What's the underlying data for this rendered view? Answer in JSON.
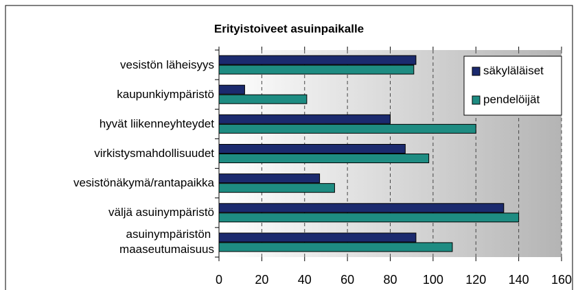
{
  "chart_data": {
    "type": "hbar",
    "title": "Erityistoiveet asuinpaikalle",
    "categories": [
      "vesistön läheisyys",
      "kaupunkiympäristö",
      "hyvät liikenneyhteydet",
      "virkistysmahdollisuudet",
      "vesistönäkymä/rantapaikka",
      "väljä asuinympäristö",
      "asuinympäristön \nmaaseutumaisuus"
    ],
    "series": [
      {
        "name": "säkyläläiset",
        "color": "#1b2a6e",
        "values": [
          92,
          12,
          80,
          87,
          47,
          133,
          92
        ]
      },
      {
        "name": "pendelöijät",
        "color": "#1e8c82",
        "values": [
          91,
          41,
          120,
          98,
          54,
          140,
          109
        ]
      }
    ],
    "xlim": [
      0,
      160
    ],
    "xticks": [
      0,
      20,
      40,
      60,
      80,
      100,
      120,
      140,
      160
    ],
    "grid": true,
    "legend": "top-right"
  }
}
